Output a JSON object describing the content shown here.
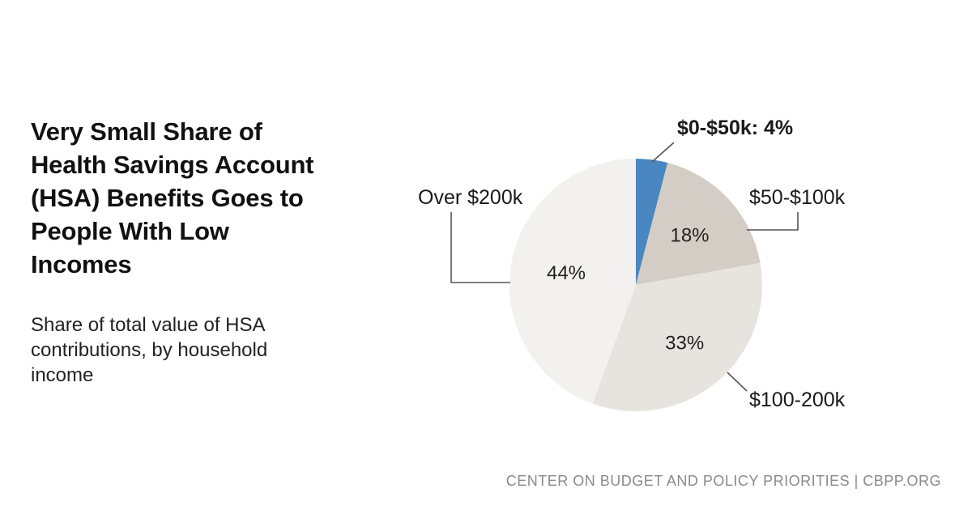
{
  "title": "Very Small Share of Health Savings Account (HSA) Benefits Goes to People With Low Incomes",
  "subtitle": "Share of total value of HSA contributions, by household income",
  "footer": "CENTER ON BUDGET AND POLICY PRIORITIES | CBPP.ORG",
  "colors": {
    "accent": "#4a86c0",
    "slice_2": "#d4cdc5",
    "slice_3": "#e7e4df",
    "slice_4": "#f2f1ef",
    "leader": "#555555"
  },
  "chart_data": {
    "type": "pie",
    "start_angle": "12 o'clock",
    "direction": "clockwise",
    "slices": [
      {
        "category": "$0-$50k",
        "value": 4,
        "label": "$0-$50k: 4%",
        "value_label": "",
        "highlight": true
      },
      {
        "category": "$50-$100k",
        "value": 18,
        "label": "$50-$100k",
        "value_label": "18%"
      },
      {
        "category": "$100-200k",
        "value": 33,
        "label": "$100-200k",
        "value_label": "33%"
      },
      {
        "category": "Over $200k",
        "value": 44,
        "label": "Over $200k",
        "value_label": "44%"
      }
    ]
  }
}
